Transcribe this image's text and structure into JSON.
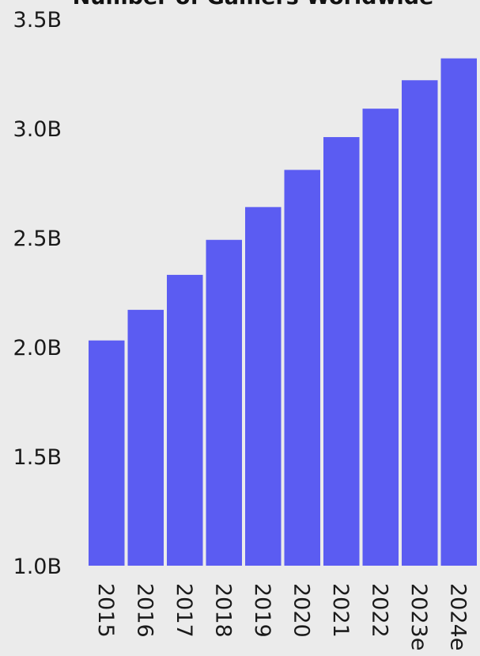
{
  "chart_data": {
    "type": "bar",
    "title": "Number of Gamers Worldwide",
    "categories": [
      "2015",
      "2016",
      "2017",
      "2018",
      "2019",
      "2020",
      "2021",
      "2022",
      "2023e",
      "2024e"
    ],
    "values": [
      2.03,
      2.17,
      2.33,
      2.49,
      2.64,
      2.81,
      2.96,
      3.09,
      3.22,
      3.32
    ],
    "units": "B",
    "ylim": [
      1.0,
      3.5
    ],
    "yticks": [
      "1.0B",
      "1.5B",
      "2.0B",
      "2.5B",
      "3.0B",
      "3.5B"
    ],
    "bar_color": "#5b5cf2",
    "background": "#ebebeb",
    "grid": false,
    "xlabel": "",
    "ylabel": ""
  }
}
